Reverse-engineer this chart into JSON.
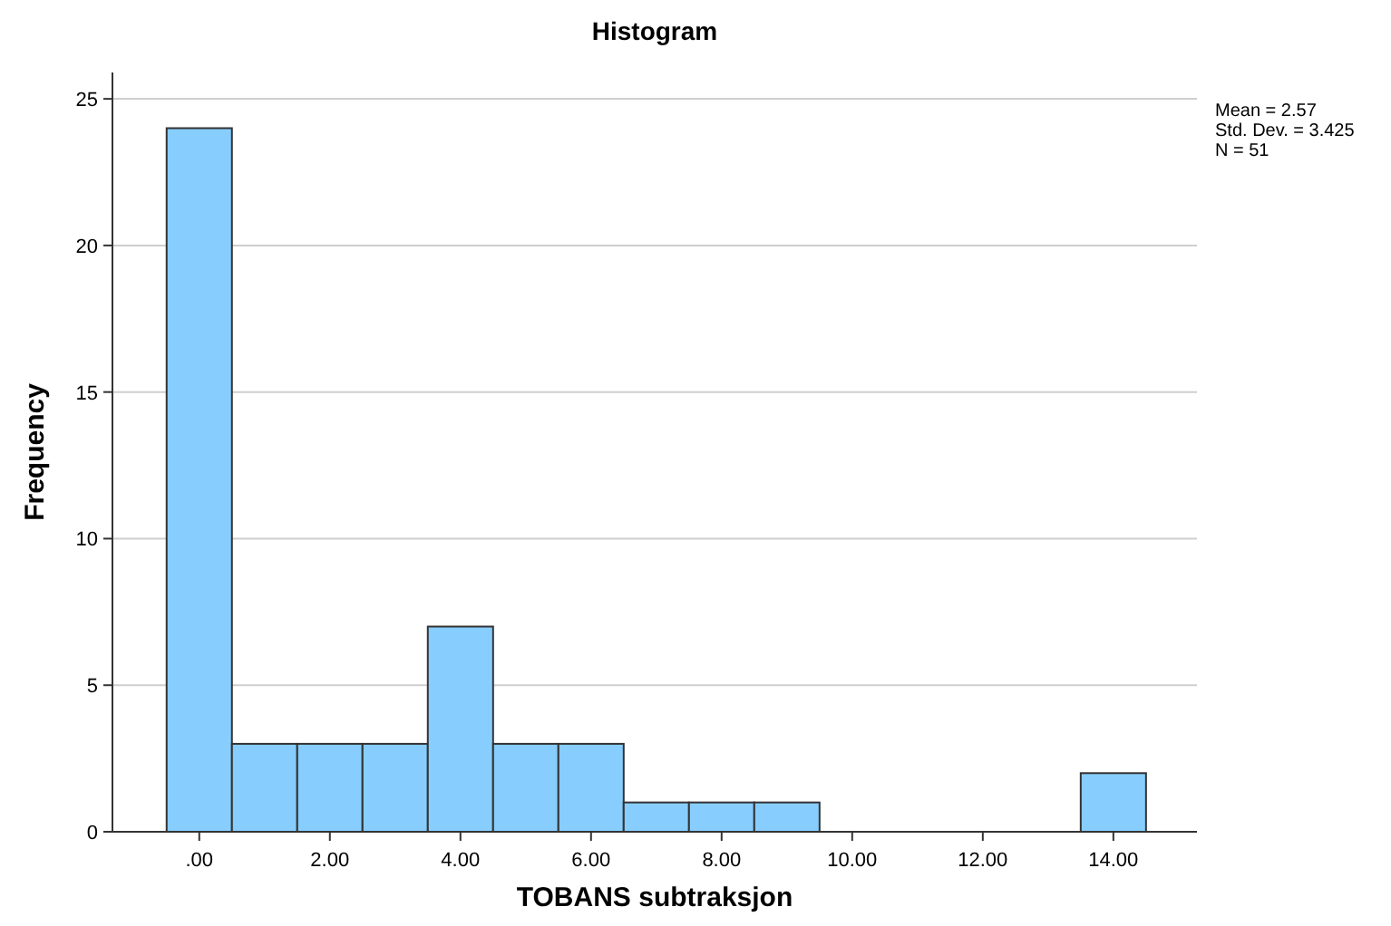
{
  "chart_data": {
    "type": "histogram",
    "title": "Histogram",
    "xlabel": "TOBANS subtraksjon",
    "ylabel": "Frequency",
    "bins": [
      -0.5,
      0.5,
      1.5,
      2.5,
      3.5,
      4.5,
      5.5,
      6.5,
      7.5,
      8.5,
      9.5,
      10.5,
      11.5,
      12.5,
      13.5,
      14.5
    ],
    "values": [
      24,
      3,
      3,
      3,
      7,
      3,
      3,
      1,
      1,
      1,
      0,
      0,
      0,
      0,
      2
    ],
    "color": "#87cefe",
    "xlim": [
      -1.33,
      15.28
    ],
    "xticks": [
      {
        "value": 0,
        "label": ".00"
      },
      {
        "value": 2,
        "label": "2.00"
      },
      {
        "value": 4,
        "label": "4.00"
      },
      {
        "value": 6,
        "label": "6.00"
      },
      {
        "value": 8,
        "label": "8.00"
      },
      {
        "value": 10,
        "label": "10.00"
      },
      {
        "value": 12,
        "label": "12.00"
      },
      {
        "value": 14,
        "label": "14.00"
      }
    ],
    "ylim": [
      0,
      25.9
    ],
    "yticks": [
      0,
      5,
      10,
      15,
      20,
      25
    ],
    "grid": "y",
    "annotations": [
      "Mean = 2.57",
      "Std. Dev. = 3.425",
      "N = 51"
    ]
  }
}
